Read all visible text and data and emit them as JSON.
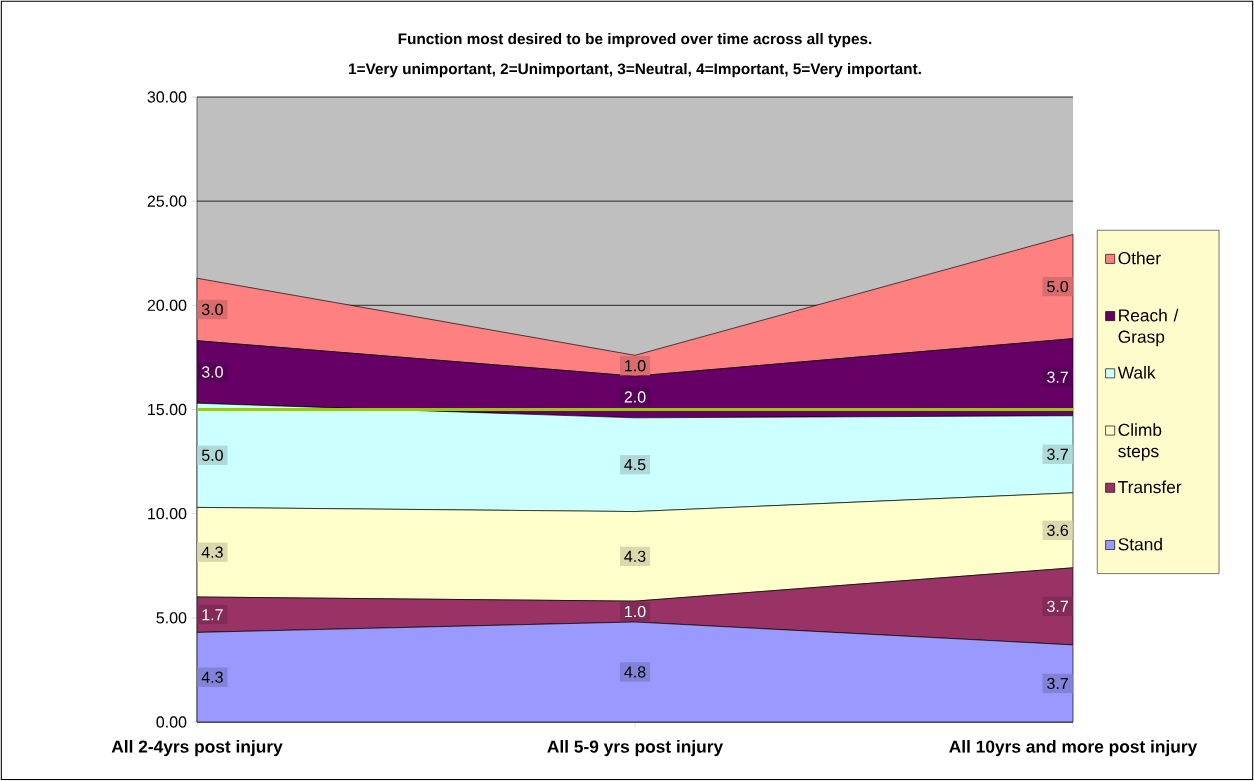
{
  "chart_data": {
    "type": "area",
    "stacked": true,
    "title": "Function most desired to be improved over time across all types.",
    "subtitle": "1=Very unimportant, 2=Unimportant, 3=Neutral, 4=Important, 5=Very important.",
    "categories": [
      "All 2-4yrs post injury",
      "All 5-9 yrs post injury",
      "All 10yrs and more post injury"
    ],
    "series": [
      {
        "name": "Stand",
        "color": "#9999ff",
        "values": [
          4.3,
          4.8,
          3.7
        ],
        "value_labels": [
          "4.3",
          "4.8",
          "3.7"
        ]
      },
      {
        "name": "Transfer",
        "color": "#993366",
        "values": [
          1.7,
          1.0,
          3.7
        ],
        "value_labels": [
          "1.7",
          "1.0",
          "3.7"
        ]
      },
      {
        "name": "Climb steps",
        "color": "#ffffcc",
        "values": [
          4.3,
          4.3,
          3.6
        ],
        "value_labels": [
          "4.3",
          "4.3",
          "3.6"
        ]
      },
      {
        "name": "Walk",
        "color": "#ccffff",
        "values": [
          5.0,
          4.5,
          3.7
        ],
        "value_labels": [
          "5.0",
          "4.5",
          "3.7"
        ]
      },
      {
        "name": "Reach / Grasp",
        "color": "#660066",
        "values": [
          3.0,
          2.0,
          3.7
        ],
        "value_labels": [
          "3.0",
          "2.0",
          "3.7"
        ]
      },
      {
        "name": "Other",
        "color": "#ff8080",
        "values": [
          3.0,
          1.0,
          5.0
        ],
        "value_labels": [
          "3.0",
          "1.0",
          "5.0"
        ]
      }
    ],
    "ylim": [
      0,
      30
    ],
    "yticks": [
      {
        "value": 0,
        "label": "0.00"
      },
      {
        "value": 5,
        "label": "5.00"
      },
      {
        "value": 10,
        "label": "10.00"
      },
      {
        "value": 15,
        "label": "15.00"
      },
      {
        "value": 20,
        "label": "20.00"
      },
      {
        "value": 25,
        "label": "25.00"
      },
      {
        "value": 30,
        "label": "30.00"
      }
    ],
    "grid": "y",
    "legend": "right",
    "ref_lines": [
      {
        "axis": "y",
        "value": 15,
        "color": "#99cc00"
      }
    ]
  }
}
